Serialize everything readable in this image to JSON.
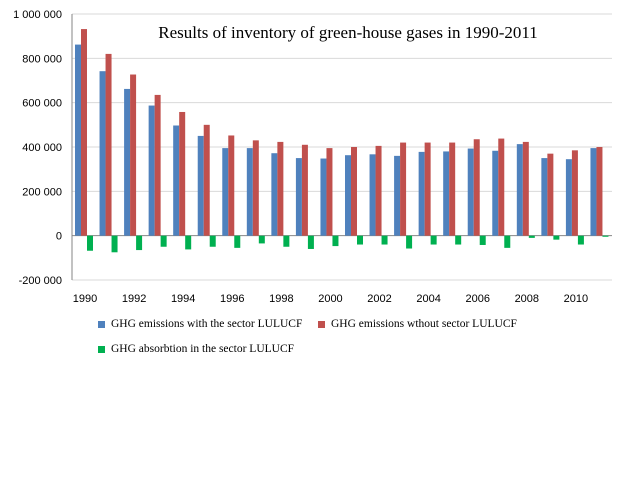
{
  "chart_data": {
    "type": "bar",
    "title": "Results of inventory of green-house gases in 1990-2011",
    "xlabel": "",
    "ylabel": "",
    "ylim": [
      -200000,
      1000000
    ],
    "yticks": [
      1000000,
      800000,
      600000,
      400000,
      200000,
      0,
      -200000
    ],
    "ytick_labels": [
      "1 000 000",
      "800 000",
      "600 000",
      "400 000",
      "200 000",
      "0",
      "-200 000"
    ],
    "grid": true,
    "legend_position": "bottom",
    "categories": [
      "1990",
      "1991",
      "1992",
      "1993",
      "1994",
      "1995",
      "1996",
      "1997",
      "1998",
      "1999",
      "2000",
      "2001",
      "2002",
      "2003",
      "2004",
      "2005",
      "2006",
      "2007",
      "2008",
      "2009",
      "2010",
      "2011"
    ],
    "xtick_labels": [
      "1990",
      "",
      "1992",
      "",
      "1994",
      "",
      "1996",
      "",
      "1998",
      "",
      "2000",
      "",
      "2002",
      "",
      "2004",
      "",
      "2006",
      "",
      "2008",
      "",
      "2010",
      ""
    ],
    "series": [
      {
        "name": "GHG emissions with the sector LULUCF",
        "color": "#4f81bd",
        "values": [
          862000,
          742000,
          662000,
          587000,
          497000,
          450000,
          395000,
          395000,
          372000,
          350000,
          348000,
          363000,
          367000,
          360000,
          378000,
          380000,
          393000,
          383000,
          413000,
          350000,
          345000,
          395000
        ]
      },
      {
        "name": "GHG emissions wthout sector LULUCF",
        "color": "#c0504d",
        "values": [
          932000,
          820000,
          727000,
          635000,
          558000,
          500000,
          452000,
          430000,
          423000,
          410000,
          395000,
          400000,
          405000,
          420000,
          420000,
          420000,
          435000,
          438000,
          423000,
          370000,
          385000,
          400000
        ]
      },
      {
        "name": "GHG absorbtion in the sector LULUCF",
        "color": "#00b050",
        "values": [
          -68000,
          -75000,
          -65000,
          -50000,
          -62000,
          -50000,
          -55000,
          -35000,
          -50000,
          -60000,
          -47000,
          -40000,
          -40000,
          -58000,
          -40000,
          -40000,
          -42000,
          -55000,
          -10000,
          -18000,
          -40000,
          -5000
        ]
      }
    ]
  }
}
